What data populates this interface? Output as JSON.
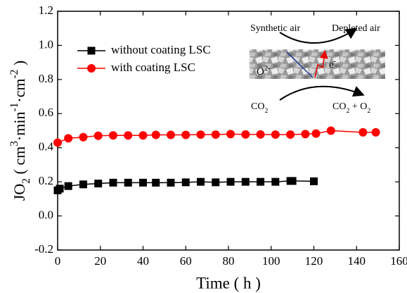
{
  "chart_data": {
    "type": "line",
    "xlabel": "Time ( h )",
    "ylabel": [
      "JO",
      "2",
      " ( cm",
      "3",
      "·min",
      "-1",
      "·cm",
      "-2",
      " )"
    ],
    "xlim": [
      0,
      160
    ],
    "ylim": [
      -0.2,
      1.2
    ],
    "xticks": [
      0,
      20,
      40,
      60,
      80,
      100,
      120,
      140,
      160
    ],
    "yticks": [
      -0.2,
      {
        "value": 0,
        "label": "0.0"
      },
      0.2,
      0.4,
      0.6,
      0.8,
      {
        "value": 1,
        "label": "1.0"
      },
      1.2
    ],
    "legend": "upper left",
    "series": [
      {
        "name": "without coating LSC",
        "color": "#000000",
        "marker": "square",
        "x": [
          0,
          1,
          5,
          12,
          19,
          26,
          33,
          40,
          46,
          53,
          60,
          67,
          74,
          81,
          88,
          95,
          102,
          109,
          110,
          120
        ],
        "values": [
          0.15,
          0.16,
          0.175,
          0.185,
          0.19,
          0.195,
          0.195,
          0.195,
          0.195,
          0.195,
          0.197,
          0.2,
          0.197,
          0.2,
          0.2,
          0.2,
          0.2,
          0.205,
          0.205,
          0.203
        ]
      },
      {
        "name": "with coating LSC",
        "color": "#ff0000",
        "marker": "circle",
        "x": [
          0,
          5,
          12,
          19,
          26,
          33,
          40,
          46,
          53,
          60,
          67,
          74,
          81,
          88,
          95,
          102,
          109,
          116,
          121,
          128,
          143,
          149
        ],
        "values": [
          0.43,
          0.455,
          0.462,
          0.47,
          0.472,
          0.472,
          0.472,
          0.475,
          0.475,
          0.475,
          0.477,
          0.477,
          0.48,
          0.478,
          0.478,
          0.477,
          0.477,
          0.48,
          0.483,
          0.5,
          0.49,
          0.49
        ]
      }
    ],
    "inset": {
      "synthetic_air": "Synthetic air",
      "depleted_air": "Depleted air",
      "oxide_ion": [
        "O",
        "2-"
      ],
      "electron": [
        "e",
        "-"
      ],
      "co2_in": [
        "CO",
        "2"
      ],
      "co2_out": [
        "CO",
        "2",
        " + O",
        "2"
      ]
    }
  }
}
